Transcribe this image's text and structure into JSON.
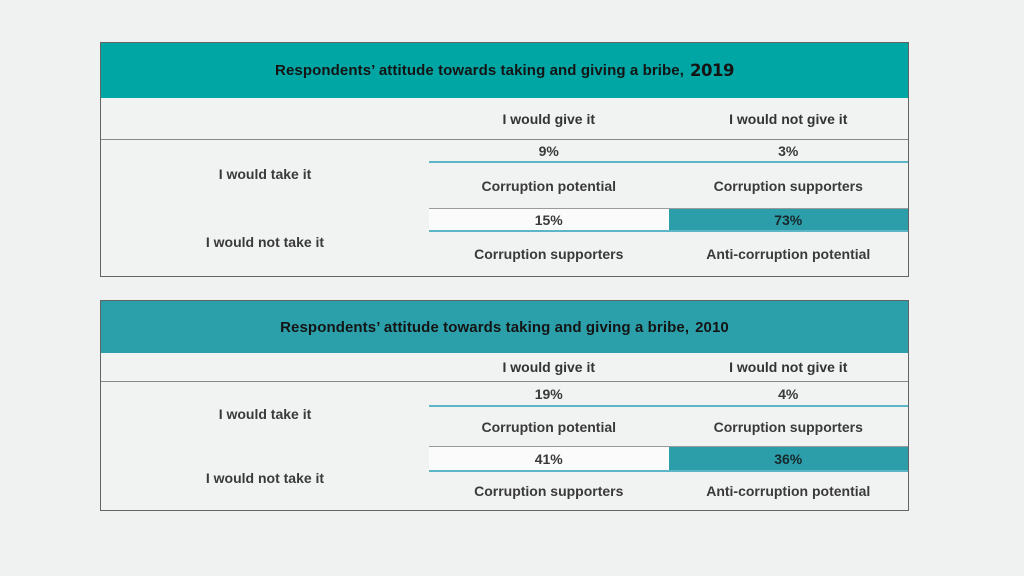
{
  "tables": [
    {
      "title": "Respondents’ attitude towards taking and giving a bribe,",
      "year": "2019",
      "header_color": "#00a6a4",
      "highlight_color": "#2b9eaa",
      "col_headers": [
        "I would give it",
        "I would not give it"
      ],
      "rows": [
        {
          "label": "I would take it",
          "cells": [
            {
              "value": "9%",
              "caption": "Corruption potential",
              "highlight": false
            },
            {
              "value": "3%",
              "caption": "Corruption supporters",
              "highlight": false
            }
          ]
        },
        {
          "label": "I would not take it",
          "cells": [
            {
              "value": "15%",
              "caption": "Corruption supporters",
              "highlight": false
            },
            {
              "value": "73%",
              "caption": "Anti-corruption potential",
              "highlight": true
            }
          ]
        }
      ]
    },
    {
      "title": "Respondents’ attitude towards taking and giving a bribe,",
      "year": "2010",
      "header_color": "#2ba0ab",
      "highlight_color": "#2b9eaa",
      "col_headers": [
        "I would give it",
        "I would not give it"
      ],
      "rows": [
        {
          "label": "I would take it",
          "cells": [
            {
              "value": "19%",
              "caption": "Corruption potential",
              "highlight": false
            },
            {
              "value": "4%",
              "caption": "Corruption supporters",
              "highlight": false
            }
          ]
        },
        {
          "label": "I would not take it",
          "cells": [
            {
              "value": "41%",
              "caption": "Corruption supporters",
              "highlight": false
            },
            {
              "value": "36%",
              "caption": "Anti-corruption potential",
              "highlight": true
            }
          ]
        }
      ]
    }
  ],
  "chart_data": [
    {
      "type": "table",
      "title": "Respondents’ attitude towards taking and giving a bribe, 2019",
      "row_labels": [
        "I would take it",
        "I would not take it"
      ],
      "col_labels": [
        "I would give it",
        "I would not give it"
      ],
      "values_pct": [
        [
          9,
          3
        ],
        [
          15,
          73
        ]
      ],
      "cell_captions": [
        [
          "Corruption potential",
          "Corruption supporters"
        ],
        [
          "Corruption supporters",
          "Anti-corruption potential"
        ]
      ],
      "highlighted_value_pct": 73
    },
    {
      "type": "table",
      "title": "Respondents’ attitude towards taking and giving a bribe, 2010",
      "row_labels": [
        "I would take it",
        "I would not take it"
      ],
      "col_labels": [
        "I would give it",
        "I would not give it"
      ],
      "values_pct": [
        [
          19,
          4
        ],
        [
          41,
          36
        ]
      ],
      "cell_captions": [
        [
          "Corruption potential",
          "Corruption supporters"
        ],
        [
          "Corruption supporters",
          "Anti-corruption potential"
        ]
      ],
      "highlighted_value_pct": 36
    }
  ]
}
